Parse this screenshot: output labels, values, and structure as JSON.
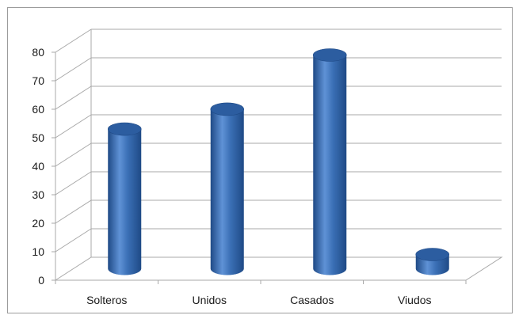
{
  "chart_data": {
    "type": "bar",
    "style": "3d-cylinder",
    "categories": [
      "Solteros",
      "Unidos",
      "Casados",
      "Viudos"
    ],
    "values": [
      49,
      56,
      75,
      5
    ],
    "ylim": [
      0,
      80
    ],
    "yticks": [
      "0",
      "10",
      "20",
      "30",
      "40",
      "50",
      "60",
      "70",
      "80"
    ],
    "grid": true,
    "legend": "none",
    "title": "",
    "xlabel": "",
    "ylabel": "",
    "colors": {
      "bar": "#3a6fb5",
      "bar_dark": "#1f4a86",
      "bar_light": "#5f92d6",
      "bar_top": "#2c5da0",
      "grid": "#a8a8a8",
      "border": "#9c9c9c"
    }
  }
}
